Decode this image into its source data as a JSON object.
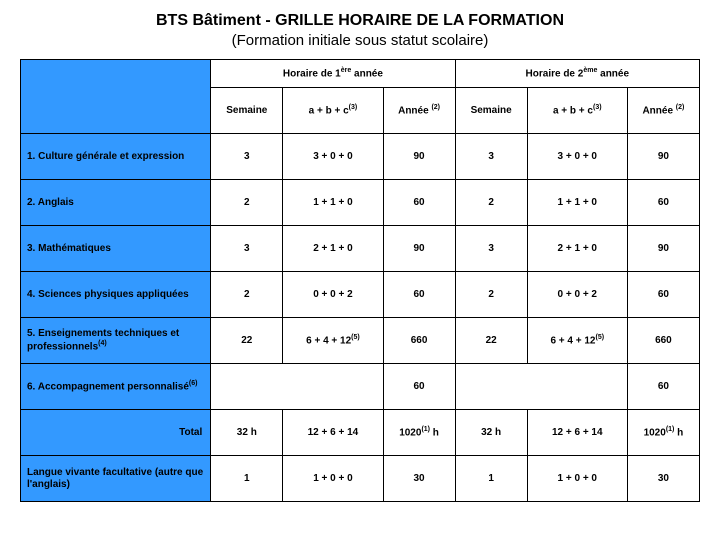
{
  "header": {
    "title": "BTS Bâtiment - GRILLE HORAIRE DE LA FORMATION",
    "subtitle": "(Formation initiale sous statut scolaire)"
  },
  "colors": {
    "header_bg": "#3399ff",
    "text": "#000000",
    "border": "#000000",
    "background": "#ffffff"
  },
  "table": {
    "type": "table",
    "header": {
      "year1_pre": "Horaire de 1",
      "year1_sup": "ère",
      "year2_pre": "Horaire de 2",
      "year2_sup": "ème",
      "year_suffix": "année",
      "col_semaine": "Semaine",
      "col_abc": "a + b + c",
      "col_abc_note": "(3)",
      "col_annee": "Année ",
      "col_annee_note": "(2)"
    },
    "rows": [
      {
        "label": "1. Culture générale et expression",
        "y1": {
          "semaine": "3",
          "abc": "3 + 0 + 0",
          "annee": "90"
        },
        "y2": {
          "semaine": "3",
          "abc": "3 + 0 + 0",
          "annee": "90"
        }
      },
      {
        "label": "2. Anglais",
        "y1": {
          "semaine": "2",
          "abc": "1 + 1 + 0",
          "annee": "60"
        },
        "y2": {
          "semaine": "2",
          "abc": "1 + 1 + 0",
          "annee": "60"
        }
      },
      {
        "label": "3. Mathématiques",
        "y1": {
          "semaine": "3",
          "abc": "2 + 1 + 0",
          "annee": "90"
        },
        "y2": {
          "semaine": "3",
          "abc": "2 + 1 + 0",
          "annee": "90"
        }
      },
      {
        "label": "4. Sciences physiques appliquées",
        "y1": {
          "semaine": "2",
          "abc": "0 + 0 + 2",
          "annee": "60"
        },
        "y2": {
          "semaine": "2",
          "abc": "0 + 0 + 2",
          "annee": "60"
        }
      },
      {
        "label": "5. Enseignements techniques et professionnels",
        "sup": "(4)",
        "y1": {
          "semaine": "22",
          "abc": "6 + 4 + 12",
          "abc_sup": "(5)",
          "annee": "660"
        },
        "y2": {
          "semaine": "22",
          "abc": "6 + 4 + 12",
          "abc_sup": "(5)",
          "annee": "660"
        }
      },
      {
        "label": "6. Accompagnement personnalisé",
        "sup": "(6)",
        "y1": {
          "annee": "60"
        },
        "y2": {
          "annee": "60"
        }
      },
      {
        "label": "Total",
        "unit": "h",
        "y1": {
          "semaine": "32 h",
          "abc": "12 + 6 + 14",
          "annee": "1020",
          "sup": "(1)"
        },
        "y2": {
          "semaine": "32 h",
          "abc": "12 + 6 + 14",
          "annee": "1020",
          "sup": "(1)"
        }
      },
      {
        "label": "Langue vivante facultative (autre que l'anglais)",
        "y1": {
          "semaine": "1",
          "abc": "1 + 0 + 0",
          "annee": "30"
        },
        "y2": {
          "semaine": "1",
          "abc": "1 + 0 + 0",
          "annee": "30"
        }
      }
    ]
  }
}
